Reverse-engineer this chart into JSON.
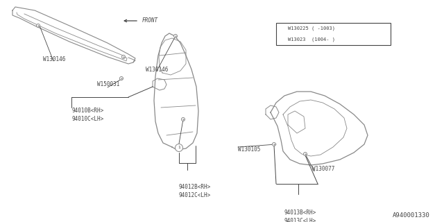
{
  "bg_color": "#ffffff",
  "lc": "#888888",
  "tc": "#444444",
  "title_bottom": "A940001330",
  "font_size_label": 5.5,
  "font_size_bottom": 6.5,
  "labels": {
    "part1": "94010B<RH>\n94010C<LH>",
    "part2": "94012B<RH>\n94012C<LH>",
    "part3": "94013B<RH>\n94013C<LH>",
    "w150031": "W150031",
    "w130146a": "W130146",
    "w130146b": "W130146",
    "w130105": "W130105",
    "w130077": "W130077",
    "front": "FRONT",
    "legend1": "W130225 ( -1003)",
    "legend2": "W13023  (1004- )"
  }
}
